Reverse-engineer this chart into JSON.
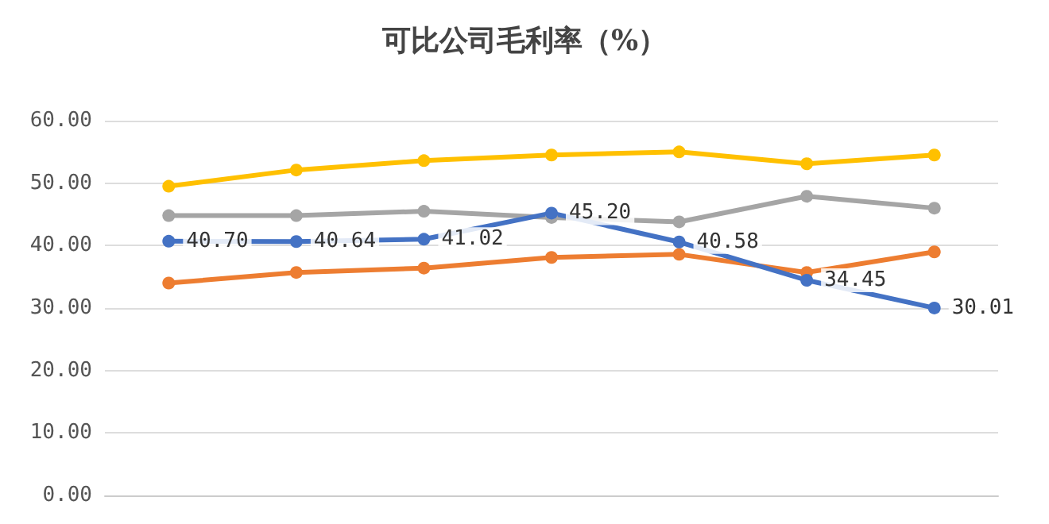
{
  "chart_data": {
    "type": "line",
    "title": "可比公司毛利率（%）",
    "categories": [
      null,
      null,
      null,
      null,
      null,
      null,
      null
    ],
    "series": [
      {
        "color": "#ffc000",
        "values": [
          49.5,
          52.1,
          53.6,
          54.5,
          55.0,
          53.1,
          54.5
        ]
      },
      {
        "color": "#a5a5a5",
        "values": [
          44.8,
          44.8,
          45.5,
          44.5,
          43.8,
          47.9,
          46.0
        ]
      },
      {
        "color": "#ed7d31",
        "values": [
          34.0,
          35.7,
          36.4,
          38.1,
          38.6,
          35.7,
          39.0
        ]
      },
      {
        "color": "#4472c4",
        "values": [
          40.7,
          40.64,
          41.02,
          45.2,
          40.58,
          34.45,
          30.01
        ],
        "value_labels": [
          "40.70",
          "40.64",
          "41.02",
          "45.20",
          "40.58",
          "34.45",
          "30.01"
        ]
      }
    ],
    "ylim": [
      0,
      60
    ],
    "yticks": [
      {
        "value": 0,
        "label": "0.00"
      },
      {
        "value": 10,
        "label": "10.00"
      },
      {
        "value": 20,
        "label": "20.00"
      },
      {
        "value": 30,
        "label": "30.00"
      },
      {
        "value": 40,
        "label": "40.00"
      },
      {
        "value": 50,
        "label": "50.00"
      },
      {
        "value": 60,
        "label": "60.00"
      }
    ],
    "grid": true,
    "marker": "circle"
  }
}
